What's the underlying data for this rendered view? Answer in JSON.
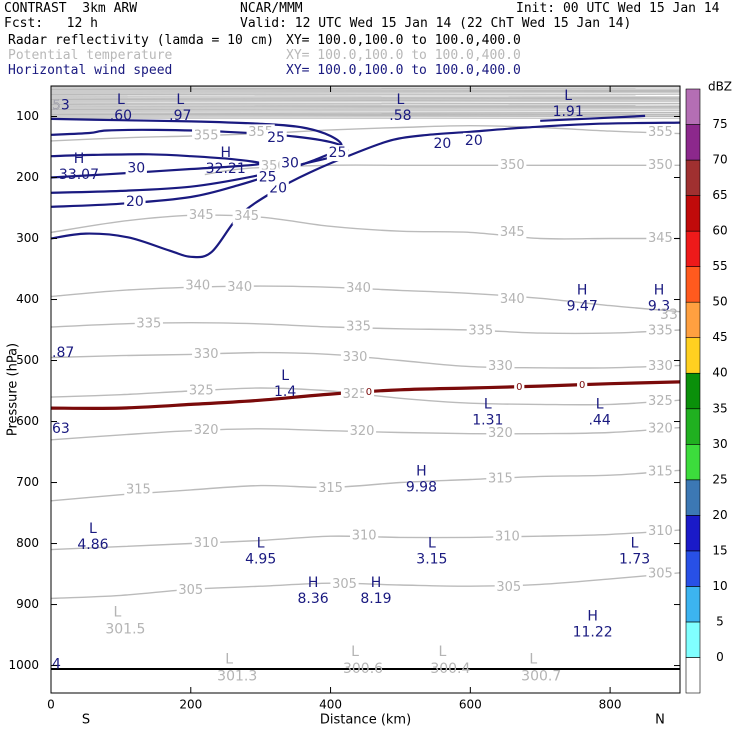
{
  "header": {
    "title": "CONTRAST  3km ARW",
    "center": "NCAR/MMM",
    "init": "Init: 00 UTC Wed 15 Jan 14",
    "fcst": "Fcst:   12 h",
    "valid": "Valid: 12 UTC Wed 15 Jan 14 (22 ChT Wed 15 Jan 14)"
  },
  "legend": [
    {
      "label": "Radar reflectivity (lamda = 10 cm)",
      "xy": "XY= 100.0,100.0 to 100.0,400.0"
    },
    {
      "label": "Potential temperature",
      "xy": "XY= 100.0,100.0 to 100.0,400.0"
    },
    {
      "label": "Horizontal wind speed",
      "xy": "XY= 100.0,100.0 to 100.0,400.0"
    }
  ],
  "colors": {
    "theta": "#bbbbbb",
    "wind": "#1a1a80",
    "freezing": "#7a0a0a",
    "axis": "#000000"
  },
  "chart_data": {
    "type": "cross-section",
    "xlabel": "Distance (km)",
    "ylabel": "Pressure (hPa)",
    "xlim": [
      0,
      900
    ],
    "ylim": [
      1045,
      50
    ],
    "x_ticks": [
      0,
      200,
      400,
      600,
      800
    ],
    "y_ticks": [
      100,
      200,
      300,
      400,
      500,
      600,
      700,
      800,
      900,
      1000
    ],
    "x_end_labels": {
      "left": "S",
      "right": "N"
    },
    "colorbar": {
      "unit": "dBZ",
      "levels": [
        0,
        5,
        10,
        15,
        20,
        25,
        30,
        35,
        40,
        45,
        50,
        55,
        60,
        65,
        70,
        75
      ],
      "colors": [
        "#ffffff",
        "#80ffff",
        "#3cb4f0",
        "#2850e6",
        "#1a1ac8",
        "#3c78b4",
        "#3cdc3c",
        "#20b020",
        "#0a900a",
        "#ffd020",
        "#ffa040",
        "#ff5a1e",
        "#ee1a1a",
        "#c00a0a",
        "#a03030",
        "#8c288c",
        "#b46eb4"
      ]
    },
    "theta_contours": [
      {
        "value": 305,
        "points": [
          [
            0,
            890
          ],
          [
            100,
            885
          ],
          [
            200,
            875
          ],
          [
            300,
            870
          ],
          [
            400,
            865
          ],
          [
            500,
            868
          ],
          [
            600,
            870
          ],
          [
            700,
            867
          ],
          [
            800,
            858
          ],
          [
            900,
            848
          ]
        ]
      },
      {
        "value": 310,
        "points": [
          [
            0,
            810
          ],
          [
            100,
            805
          ],
          [
            200,
            800
          ],
          [
            300,
            795
          ],
          [
            400,
            788
          ],
          [
            500,
            790
          ],
          [
            600,
            790
          ],
          [
            700,
            788
          ],
          [
            800,
            785
          ],
          [
            900,
            778
          ]
        ]
      },
      {
        "value": 315,
        "points": [
          [
            0,
            730
          ],
          [
            100,
            720
          ],
          [
            200,
            712
          ],
          [
            300,
            705
          ],
          [
            400,
            708
          ],
          [
            500,
            700
          ],
          [
            600,
            695
          ],
          [
            700,
            690
          ],
          [
            800,
            688
          ],
          [
            900,
            680
          ]
        ]
      },
      {
        "value": 320,
        "points": [
          [
            0,
            630
          ],
          [
            100,
            622
          ],
          [
            200,
            615
          ],
          [
            300,
            612
          ],
          [
            400,
            615
          ],
          [
            500,
            618
          ],
          [
            600,
            620
          ],
          [
            700,
            620
          ],
          [
            800,
            618
          ],
          [
            900,
            610
          ]
        ]
      },
      {
        "value": 325,
        "points": [
          [
            0,
            560
          ],
          [
            100,
            556
          ],
          [
            200,
            550
          ],
          [
            300,
            545
          ],
          [
            400,
            550
          ],
          [
            500,
            562
          ],
          [
            600,
            570
          ],
          [
            700,
            572
          ],
          [
            800,
            572
          ],
          [
            900,
            565
          ]
        ]
      },
      {
        "value": 330,
        "points": [
          [
            0,
            495
          ],
          [
            100,
            492
          ],
          [
            200,
            490
          ],
          [
            300,
            487
          ],
          [
            400,
            490
          ],
          [
            500,
            500
          ],
          [
            600,
            510
          ],
          [
            700,
            512
          ],
          [
            800,
            512
          ],
          [
            900,
            508
          ]
        ]
      },
      {
        "value": 335,
        "points": [
          [
            0,
            445
          ],
          [
            100,
            440
          ],
          [
            200,
            438
          ],
          [
            300,
            440
          ],
          [
            400,
            445
          ],
          [
            500,
            448
          ],
          [
            600,
            450
          ],
          [
            700,
            455
          ],
          [
            800,
            455
          ],
          [
            900,
            450
          ]
        ]
      },
      {
        "value": 340,
        "points": [
          [
            0,
            395
          ],
          [
            100,
            385
          ],
          [
            200,
            380
          ],
          [
            300,
            378
          ],
          [
            400,
            380
          ],
          [
            500,
            385
          ],
          [
            600,
            390
          ],
          [
            700,
            398
          ],
          [
            800,
            410
          ],
          [
            900,
            420
          ]
        ]
      },
      {
        "value": 345,
        "points": [
          [
            0,
            290
          ],
          [
            100,
            272
          ],
          [
            200,
            262
          ],
          [
            300,
            265
          ],
          [
            400,
            280
          ],
          [
            500,
            288
          ],
          [
            600,
            290
          ],
          [
            700,
            300
          ],
          [
            800,
            300
          ],
          [
            900,
            300
          ]
        ]
      },
      {
        "value": 350,
        "points": [
          [
            220,
            195
          ],
          [
            280,
            185
          ],
          [
            400,
            180
          ],
          [
            500,
            180
          ],
          [
            600,
            180
          ],
          [
            700,
            180
          ],
          [
            800,
            180
          ],
          [
            900,
            180
          ]
        ]
      },
      {
        "value": 355,
        "points": [
          [
            0,
            140
          ],
          [
            100,
            135
          ],
          [
            200,
            132
          ],
          [
            300,
            128
          ],
          [
            400,
            122
          ],
          [
            500,
            118
          ],
          [
            600,
            115
          ],
          [
            700,
            118
          ],
          [
            800,
            124
          ],
          [
            900,
            128
          ]
        ]
      }
    ],
    "theta_labels": [
      {
        "x": 200,
        "p": 877,
        "text": "305"
      },
      {
        "x": 420,
        "p": 867,
        "text": "305"
      },
      {
        "x": 655,
        "p": 872,
        "text": "305"
      },
      {
        "x": 872,
        "p": 850,
        "text": "305"
      },
      {
        "x": 222,
        "p": 800,
        "text": "310"
      },
      {
        "x": 448,
        "p": 788,
        "text": "310"
      },
      {
        "x": 653,
        "p": 789,
        "text": "310"
      },
      {
        "x": 872,
        "p": 780,
        "text": "310"
      },
      {
        "x": 125,
        "p": 712,
        "text": "315"
      },
      {
        "x": 400,
        "p": 710,
        "text": "315"
      },
      {
        "x": 643,
        "p": 694,
        "text": "315"
      },
      {
        "x": 872,
        "p": 683,
        "text": "315"
      },
      {
        "x": 222,
        "p": 615,
        "text": "320"
      },
      {
        "x": 445,
        "p": 616,
        "text": "320"
      },
      {
        "x": 643,
        "p": 620,
        "text": "320"
      },
      {
        "x": 872,
        "p": 612,
        "text": "320"
      },
      {
        "x": 215,
        "p": 550,
        "text": "325"
      },
      {
        "x": 435,
        "p": 556,
        "text": "325"
      },
      {
        "x": 872,
        "p": 567,
        "text": "325"
      },
      {
        "x": 222,
        "p": 490,
        "text": "330"
      },
      {
        "x": 435,
        "p": 495,
        "text": "330"
      },
      {
        "x": 643,
        "p": 510,
        "text": "330"
      },
      {
        "x": 872,
        "p": 510,
        "text": "330"
      },
      {
        "x": 140,
        "p": 440,
        "text": "335"
      },
      {
        "x": 440,
        "p": 445,
        "text": "335"
      },
      {
        "x": 615,
        "p": 452,
        "text": "335"
      },
      {
        "x": 872,
        "p": 452,
        "text": "335"
      },
      {
        "x": 210,
        "p": 378,
        "text": "340"
      },
      {
        "x": 270,
        "p": 380,
        "text": "340"
      },
      {
        "x": 440,
        "p": 382,
        "text": "340"
      },
      {
        "x": 660,
        "p": 400,
        "text": "340"
      },
      {
        "x": 215,
        "p": 262,
        "text": "345"
      },
      {
        "x": 280,
        "p": 264,
        "text": "345"
      },
      {
        "x": 660,
        "p": 290,
        "text": "345"
      },
      {
        "x": 872,
        "p": 300,
        "text": "345"
      },
      {
        "x": 318,
        "p": 182,
        "text": "350"
      },
      {
        "x": 660,
        "p": 180,
        "text": "350"
      },
      {
        "x": 872,
        "p": 180,
        "text": "350"
      },
      {
        "x": 222,
        "p": 132,
        "text": "355"
      },
      {
        "x": 300,
        "p": 126,
        "text": "355"
      },
      {
        "x": 872,
        "p": 126,
        "text": "355"
      }
    ],
    "wind_contours": [
      {
        "value": 20,
        "points": [
          [
            0,
            300
          ],
          [
            50,
            292
          ],
          [
            110,
            298
          ],
          [
            170,
            320
          ],
          [
            200,
            330
          ],
          [
            230,
            322
          ],
          [
            270,
            262
          ],
          [
            320,
            222
          ],
          [
            370,
            192
          ],
          [
            440,
            158
          ],
          [
            490,
            138
          ],
          [
            540,
            130
          ],
          [
            600,
            125
          ],
          [
            680,
            118
          ],
          [
            780,
            112
          ],
          [
            900,
            110
          ]
        ]
      },
      {
        "value": 20,
        "points": [
          [
            0,
            248
          ],
          [
            100,
            243
          ],
          [
            200,
            232
          ],
          [
            270,
            212
          ],
          [
            330,
            190
          ],
          [
            380,
            170
          ],
          [
            415,
            150
          ],
          [
            400,
            132
          ],
          [
            360,
            118
          ],
          [
            300,
            112
          ],
          [
            200,
            108
          ],
          [
            100,
            106
          ],
          [
            0,
            104
          ]
        ]
      },
      {
        "value": 25,
        "points": [
          [
            0,
            225
          ],
          [
            100,
            222
          ],
          [
            200,
            215
          ],
          [
            290,
            198
          ],
          [
            360,
            178
          ],
          [
            420,
            160
          ],
          [
            410,
            145
          ],
          [
            350,
            133
          ],
          [
            250,
            125
          ],
          [
            150,
            122
          ],
          [
            80,
            123
          ],
          [
            55,
            127
          ],
          [
            0,
            130
          ]
        ]
      },
      {
        "value": 30,
        "points": [
          [
            0,
            165
          ],
          [
            60,
            163
          ],
          [
            140,
            162
          ],
          [
            200,
            165
          ],
          [
            260,
            170
          ],
          [
            300,
            177
          ],
          [
            260,
            182
          ],
          [
            200,
            186
          ],
          [
            120,
            192
          ],
          [
            60,
            196
          ],
          [
            0,
            200
          ]
        ]
      },
      {
        "value": 30,
        "points": [
          [
            700,
            107
          ],
          [
            780,
            103
          ],
          [
            850,
            99
          ]
        ]
      }
    ],
    "wind_labels": [
      {
        "x": 120,
        "p": 240,
        "text": "20"
      },
      {
        "x": 325,
        "p": 218,
        "text": "20"
      },
      {
        "x": 560,
        "p": 145,
        "text": "20"
      },
      {
        "x": 605,
        "p": 140,
        "text": "20"
      },
      {
        "x": 310,
        "p": 200,
        "text": "25"
      },
      {
        "x": 410,
        "p": 160,
        "text": "25"
      },
      {
        "x": 322,
        "p": 135,
        "text": "25"
      },
      {
        "x": 122,
        "p": 185,
        "text": "30"
      },
      {
        "x": 342,
        "p": 177,
        "text": "30"
      }
    ],
    "freezing_level": {
      "value": 0,
      "points": [
        [
          0,
          578
        ],
        [
          100,
          578
        ],
        [
          200,
          572
        ],
        [
          300,
          565
        ],
        [
          400,
          555
        ],
        [
          500,
          548
        ],
        [
          600,
          545
        ],
        [
          700,
          542
        ],
        [
          800,
          538
        ],
        [
          900,
          535
        ]
      ]
    },
    "freezing_labels": [
      {
        "x": 455,
        "p": 552,
        "text": "0"
      },
      {
        "x": 670,
        "p": 543,
        "text": "0"
      },
      {
        "x": 760,
        "p": 540,
        "text": "0"
      }
    ],
    "extrema_wind": [
      {
        "x": 100,
        "p": 73,
        "letter": "L",
        "value": ".60"
      },
      {
        "x": 185,
        "p": 73,
        "letter": "L",
        "value": ".97"
      },
      {
        "x": 500,
        "p": 73,
        "letter": "L",
        "value": ".58"
      },
      {
        "x": 740,
        "p": 66,
        "letter": "L",
        "value": "1.91"
      },
      {
        "x": 40,
        "p": 170,
        "letter": "H",
        "value": "33.07"
      },
      {
        "x": 250,
        "p": 160,
        "letter": "H",
        "value": "32.21"
      },
      {
        "x": 760,
        "p": 385,
        "letter": "H",
        "value": "9.47"
      },
      {
        "x": 870,
        "p": 385,
        "letter": "H",
        "value": "9.3"
      },
      {
        "x": 335,
        "p": 525,
        "letter": "L",
        "value": "1.4"
      },
      {
        "x": 625,
        "p": 572,
        "letter": "L",
        "value": "1.31"
      },
      {
        "x": 785,
        "p": 572,
        "letter": "L",
        "value": ".44"
      },
      {
        "x": 530,
        "p": 682,
        "letter": "H",
        "value": "9.98"
      },
      {
        "x": 60,
        "p": 776,
        "letter": "L",
        "value": "4.86"
      },
      {
        "x": 300,
        "p": 800,
        "letter": "L",
        "value": "4.95"
      },
      {
        "x": 545,
        "p": 800,
        "letter": "L",
        "value": "3.15"
      },
      {
        "x": 835,
        "p": 800,
        "letter": "L",
        "value": "1.73"
      },
      {
        "x": 375,
        "p": 865,
        "letter": "H",
        "value": "8.36"
      },
      {
        "x": 465,
        "p": 865,
        "letter": "H",
        "value": "8.19"
      },
      {
        "x": 775,
        "p": 920,
        "letter": "H",
        "value": "11.22"
      }
    ],
    "edge_wind_values": [
      {
        "x": 0,
        "p": 82,
        "text": "53"
      },
      {
        "x": 0,
        "p": 488,
        "text": ".87"
      },
      {
        "x": 0,
        "p": 612,
        "text": "63"
      },
      {
        "x": 0,
        "p": 998,
        "text": "4"
      }
    ],
    "extrema_theta": [
      {
        "x": 95,
        "p": 913,
        "letter": "L",
        "value": "301.5"
      },
      {
        "x": 255,
        "p": 990,
        "letter": "L",
        "value": "301.3"
      },
      {
        "x": 435,
        "p": 978,
        "letter": "L",
        "value": "300.6"
      },
      {
        "x": 560,
        "p": 978,
        "letter": "L",
        "value": "300.4"
      },
      {
        "x": 690,
        "p": 990,
        "letter": "L",
        "value": "300.7"
      }
    ],
    "edge_theta_values": [
      {
        "x": 0,
        "p": 82,
        "text": "5"
      },
      {
        "x": 870,
        "p": 425,
        "text": "33"
      }
    ]
  }
}
